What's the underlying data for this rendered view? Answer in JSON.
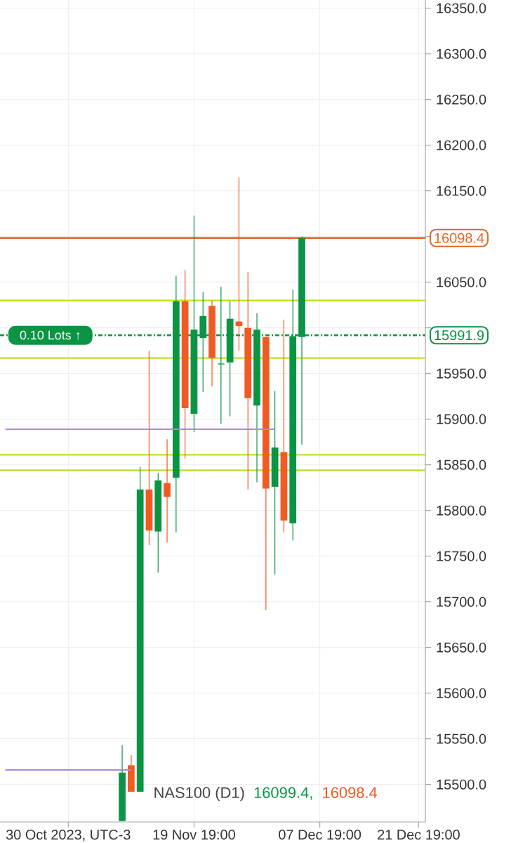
{
  "chart_data": {
    "type": "candlestick",
    "categories": [
      null,
      null,
      null,
      null,
      null,
      null,
      null,
      "30 Oct 2023, UTC-3",
      null,
      null,
      null,
      null,
      null,
      null,
      null,
      null,
      null,
      null,
      null,
      null,
      null,
      "19 Nov 19:00",
      null,
      null,
      null,
      null,
      null,
      null,
      null,
      null,
      null,
      null,
      null,
      null,
      null,
      "07 Dec 19:00",
      null,
      null,
      null,
      null,
      null,
      null,
      null,
      null,
      null,
      null,
      "21 Dec 19:00"
    ],
    "ohlc": [
      null,
      null,
      null,
      null,
      null,
      null,
      null,
      null,
      null,
      null,
      null,
      null,
      null,
      [
        15460,
        15543,
        15460,
        15513
      ],
      [
        15521,
        15532,
        15492,
        15492
      ],
      [
        15492,
        15848,
        15492,
        15823
      ],
      [
        15823,
        15975,
        15762,
        15778
      ],
      [
        15777,
        15841,
        15732,
        15833
      ],
      [
        15830,
        15878,
        15765,
        15815
      ],
      [
        15836,
        16057,
        15776,
        16029
      ],
      [
        16029,
        16063,
        15857,
        15912
      ],
      [
        15906,
        16123,
        15886,
        15998
      ],
      [
        15989,
        16039,
        15930,
        16013
      ],
      [
        16024,
        16030,
        15936,
        15967
      ],
      [
        15960,
        16045,
        15895,
        15961
      ],
      [
        15962,
        16029,
        15903,
        16010
      ],
      [
        16007,
        16165,
        15975,
        16002
      ],
      [
        16000,
        16061,
        15823,
        15923
      ],
      [
        15915,
        16016,
        15831,
        15998
      ],
      [
        15990,
        15990,
        15691,
        15824
      ],
      [
        15826,
        15931,
        15730,
        15869
      ],
      [
        15864,
        16009,
        15776,
        15789
      ],
      [
        15786,
        16042,
        15767,
        15991
      ],
      [
        15990,
        16100,
        15872,
        16098.4
      ],
      null,
      null,
      null,
      null,
      null,
      null,
      null,
      null,
      null,
      null,
      null,
      null,
      null
    ],
    "colors": [
      null,
      null,
      null,
      null,
      null,
      null,
      null,
      null,
      null,
      null,
      null,
      null,
      null,
      "#0a9444",
      "#f05a23",
      "#0a9444",
      "#f05a23",
      "#0a9444",
      "#f05a23",
      "#0a9444",
      "#f05a23",
      "#0a9444",
      "#0a9444",
      "#f05a23",
      "#0a9444",
      "#0a9444",
      "#f05a23",
      "#f05a23",
      "#0a9444",
      "#f05a23",
      "#0a9444",
      "#f05a23",
      "#0a9444",
      "#0a9444",
      null,
      null,
      null,
      null,
      null,
      null,
      null,
      null,
      null,
      null,
      null,
      null,
      null
    ],
    "series": [
      {
        "type": "line",
        "color": "#a98bd2",
        "values": [
          15516,
          15516,
          15516,
          15516,
          15516,
          15516,
          15516,
          15516,
          15516,
          15516,
          15516,
          15516,
          15516,
          15516,
          15516,
          null,
          null,
          null,
          null,
          null,
          null,
          null,
          null,
          null,
          null,
          null,
          null,
          null,
          null,
          null,
          null,
          null,
          null,
          null,
          null,
          null,
          null,
          null,
          null,
          null,
          null,
          null,
          null,
          null,
          null,
          null,
          null
        ]
      },
      {
        "type": "line",
        "color": "#a98bd2",
        "values": [
          15889,
          15889,
          15889,
          15889,
          15889,
          15889,
          15889,
          15889,
          15889,
          15889,
          15889,
          15889,
          15889,
          15889,
          15889,
          15889,
          15889,
          15889,
          15889,
          15889,
          15889,
          15889,
          15889,
          15889,
          15889,
          15889,
          15889,
          15889,
          15889,
          15889,
          15889,
          null,
          null,
          null,
          null,
          null,
          null,
          null,
          null,
          null,
          null,
          null,
          null,
          null,
          null,
          null,
          null
        ]
      }
    ],
    "ylim": [
      15459,
      16359
    ],
    "yticks": [
      {
        "value": 15500,
        "label": "15500.0"
      },
      {
        "value": 15550,
        "label": "15550.0"
      },
      {
        "value": 15600,
        "label": "15600.0"
      },
      {
        "value": 15650,
        "label": "15650.0"
      },
      {
        "value": 15700,
        "label": "15700.0"
      },
      {
        "value": 15750,
        "label": "15750.0"
      },
      {
        "value": 15800,
        "label": "15800.0"
      },
      {
        "value": 15850,
        "label": "15850.0"
      },
      {
        "value": 15900,
        "label": "15900.0"
      },
      {
        "value": 15950,
        "label": "15950.0"
      },
      {
        "value": 16000,
        "label": null
      },
      {
        "value": 16050,
        "label": "16050.0"
      },
      {
        "value": 16100,
        "label": null
      },
      {
        "value": 16150,
        "label": "16150.0"
      },
      {
        "value": 16200,
        "label": "16200.0"
      },
      {
        "value": 16250,
        "label": "16250.0"
      },
      {
        "value": 16300,
        "label": "16300.0"
      },
      {
        "value": 16350,
        "label": "16350.0"
      }
    ],
    "grid": true,
    "ref_lines": [
      {
        "axis": "y",
        "value": 16098.4,
        "color": "#e0652a"
      },
      {
        "axis": "y",
        "value": 15991.9,
        "color": "#0a9444",
        "line_style": "dashed",
        "label": "0.10 Lots ↑"
      },
      {
        "axis": "y",
        "value": 16030,
        "color": "#bde32a"
      },
      {
        "axis": "y",
        "value": 15967,
        "color": "#bde32a"
      },
      {
        "axis": "y",
        "value": 15861,
        "color": "#bde32a"
      },
      {
        "axis": "y",
        "value": 15844,
        "color": "#bde32a"
      }
    ],
    "annotations": [
      "NAS100 (D1)",
      "16099.4,",
      "16098.4",
      "16098.4",
      "15991.9"
    ]
  }
}
